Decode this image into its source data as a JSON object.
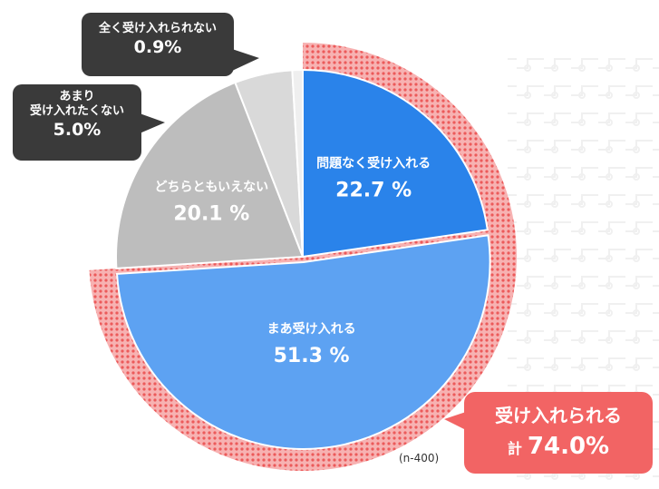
{
  "colors": {
    "slice_problem_free": "#2a83ea",
    "slice_mostly": "#5da2f2",
    "slice_neutral": "#bdbdbd",
    "slice_not_really": "#d9d9d9",
    "slice_not_at_all": "#efefef",
    "ring_accent": "#f26464",
    "callout_bg": "#3a3a3a"
  },
  "chart_data": {
    "type": "pie",
    "slices": [
      {
        "label": "問題なく受け入れる",
        "value": 22.7,
        "value_text": "22.7 %"
      },
      {
        "label": "まあ受け入れる",
        "value": 51.3,
        "value_text": "51.3 %"
      },
      {
        "label": "どちらともいえない",
        "value": 20.1,
        "value_text": "20.1 %"
      },
      {
        "label": "あまり受け入れたくない",
        "label_lines": [
          "あまり",
          "受け入れたくない"
        ],
        "value": 5.0,
        "value_text": "5.0%"
      },
      {
        "label": "全く受け入れられない",
        "value": 0.9,
        "value_text": "0.9%"
      }
    ],
    "highlight_total": {
      "label": "受け入れられる",
      "prefix": "計",
      "value": 74.0,
      "value_text": "74.0%"
    },
    "note": "(n-400)"
  }
}
